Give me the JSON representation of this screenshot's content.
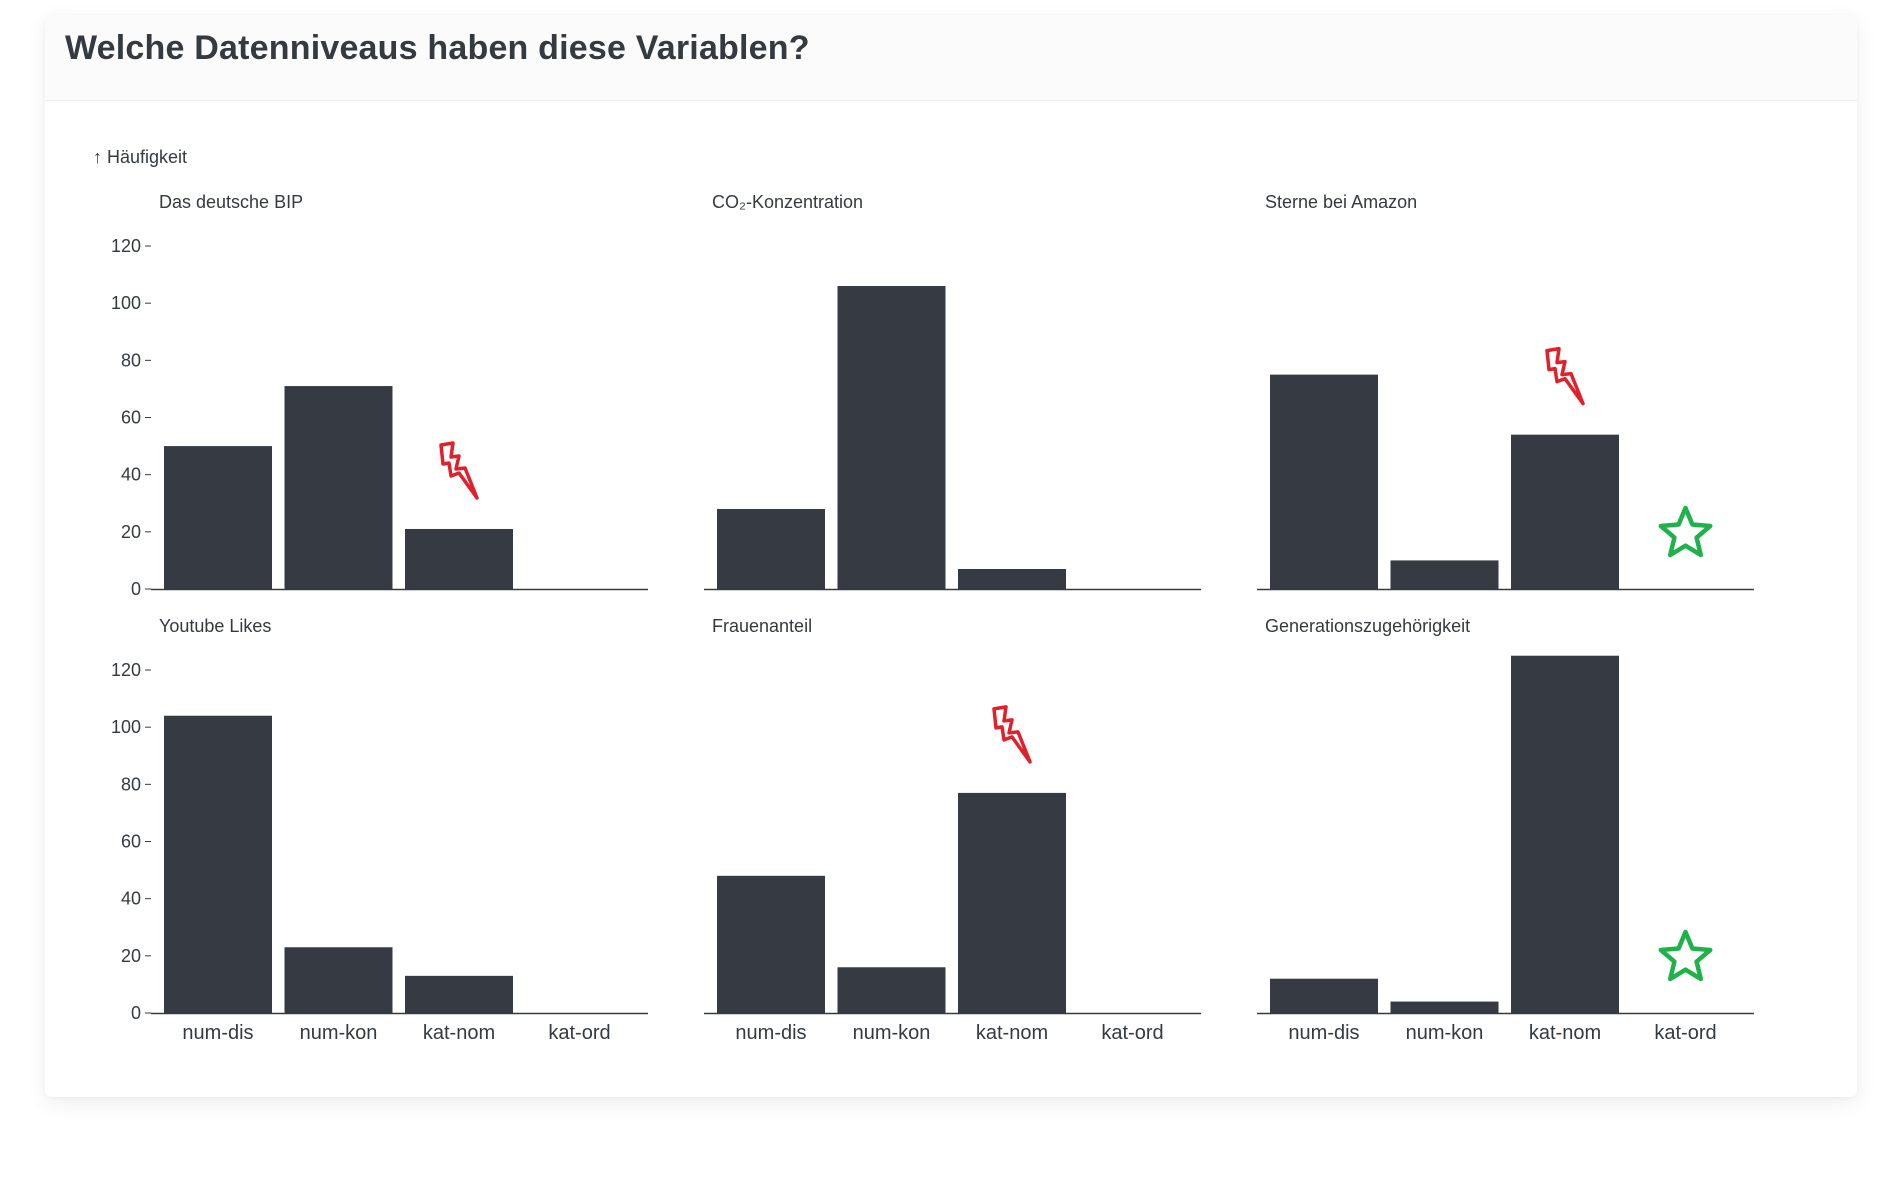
{
  "page": {
    "title": "Welche Datenniveaus haben diese Variablen?"
  },
  "chart_data": {
    "type": "bar",
    "layout": "facet-grid-2x3",
    "ylabel": "↑ Häufigkeit",
    "ylim": [
      0,
      120
    ],
    "yticks": [
      0,
      20,
      40,
      60,
      80,
      100,
      120
    ],
    "categories": [
      "num-dis",
      "num-kon",
      "kat-nom",
      "kat-ord"
    ],
    "colors": {
      "bar": "#363a42",
      "lightning": "#e0202a",
      "star": "#1fb24a",
      "axis": "#343a40"
    },
    "panels": [
      {
        "title": "Das deutsche BIP",
        "values": [
          50,
          71,
          21,
          0
        ],
        "markers": [
          {
            "icon": "lightning-icon",
            "category": "kat-nom"
          }
        ]
      },
      {
        "title": "CO₂-Konzentration",
        "values": [
          28,
          106,
          7,
          0
        ],
        "markers": []
      },
      {
        "title": "Sterne bei Amazon",
        "values": [
          75,
          10,
          54,
          0
        ],
        "markers": [
          {
            "icon": "lightning-icon",
            "category": "kat-nom"
          },
          {
            "icon": "star-icon",
            "category": "kat-ord"
          }
        ]
      },
      {
        "title": "Youtube Likes",
        "values": [
          104,
          23,
          13,
          0
        ],
        "markers": []
      },
      {
        "title": "Frauenanteil",
        "values": [
          48,
          16,
          77,
          0
        ],
        "markers": [
          {
            "icon": "lightning-icon",
            "category": "kat-nom"
          }
        ]
      },
      {
        "title": "Generationszugehörigkeit",
        "values": [
          12,
          4,
          125,
          0
        ],
        "markers": [
          {
            "icon": "star-icon",
            "category": "kat-ord"
          }
        ]
      }
    ]
  }
}
